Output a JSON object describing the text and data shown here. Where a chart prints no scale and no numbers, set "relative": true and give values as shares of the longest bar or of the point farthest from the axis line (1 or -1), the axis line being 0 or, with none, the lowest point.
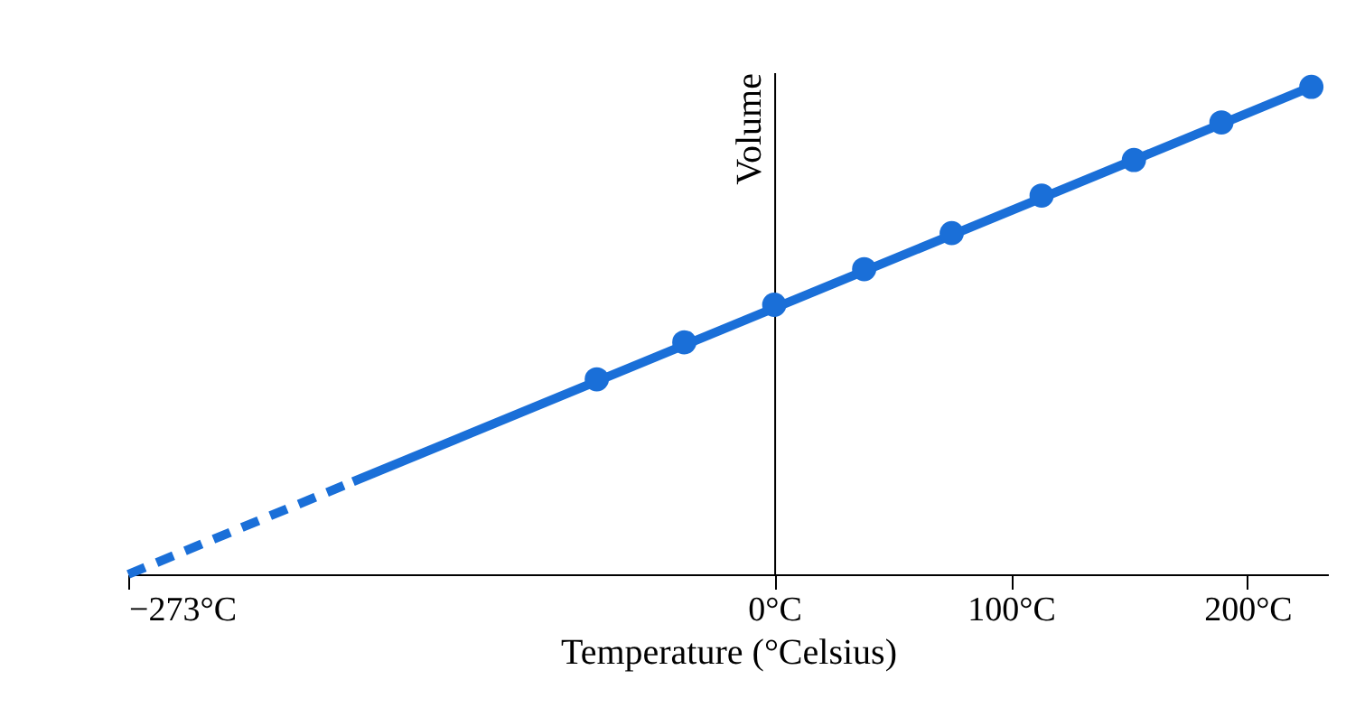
{
  "chart_data": {
    "type": "line",
    "xlabel": "Temperature (°Celsius)",
    "ylabel": "Volume",
    "relative": true,
    "xlim": [
      -273,
      234
    ],
    "xticks": [
      {
        "value": -273,
        "label": "−273°C"
      },
      {
        "value": 0,
        "label": "0°C"
      },
      {
        "value": 100,
        "label": "100°C"
      },
      {
        "value": 200,
        "label": "200°C"
      }
    ],
    "series": [
      {
        "color": "#1a6fd8",
        "x": [
          -273,
          -178
        ],
        "values": [
          0,
          0.19
        ],
        "line_style": "dashed",
        "marker": "none"
      },
      {
        "color": "#1a6fd8",
        "x": [
          -178,
          227
        ],
        "values": [
          0.19,
          1
        ],
        "line_style": "solid",
        "marker": "none"
      },
      {
        "type": "scatter",
        "color": "#1a6fd8",
        "x": [
          -75,
          -38,
          0,
          38,
          75,
          113,
          152,
          189,
          227
        ],
        "values": [
          0.4,
          0.476,
          0.553,
          0.626,
          0.7,
          0.777,
          0.85,
          0.927,
          1
        ],
        "marker": "circle"
      }
    ]
  }
}
